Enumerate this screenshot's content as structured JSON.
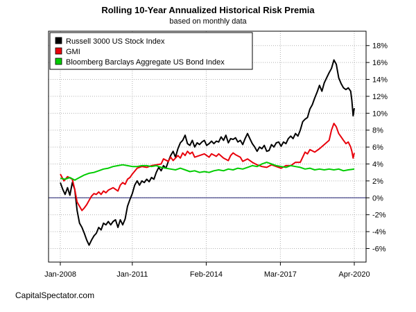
{
  "chart_data": {
    "type": "line",
    "title": "Rolling 10-Year Annualized Historical Risk Premia",
    "subtitle": "based on monthly data",
    "credit": "CapitalSpectator.com",
    "x_tick_labels": [
      "Jan-2008",
      "Jan-2011",
      "Feb-2014",
      "Mar-2017",
      "Apr-2020"
    ],
    "x_tick_values": [
      2008.0,
      2011.0,
      2014.08,
      2017.17,
      2020.25
    ],
    "xlim": [
      2008.0,
      2020.25
    ],
    "y_tick_values": [
      -6,
      -4,
      -2,
      0,
      2,
      4,
      6,
      8,
      10,
      12,
      14,
      16,
      18
    ],
    "y_tick_labels": [
      "-6%",
      "-4%",
      "-2%",
      "0%",
      "2%",
      "4%",
      "6%",
      "8%",
      "10%",
      "12%",
      "14%",
      "16%",
      "18%"
    ],
    "ylim": [
      -7.6,
      19.7
    ],
    "y_axis_side": "right",
    "grid": true,
    "reference_line": {
      "y": 0,
      "color": "#1a1a6e"
    },
    "legend_position": "top-left",
    "series": [
      {
        "name": "Russell 3000 US Stock Index",
        "color": "#000000",
        "points": [
          [
            2008.0,
            1.8
          ],
          [
            2008.1,
            1.0
          ],
          [
            2008.2,
            0.4
          ],
          [
            2008.3,
            1.2
          ],
          [
            2008.4,
            0.3
          ],
          [
            2008.5,
            1.8
          ],
          [
            2008.6,
            1.0
          ],
          [
            2008.7,
            -1.5
          ],
          [
            2008.8,
            -3.0
          ],
          [
            2008.9,
            -3.5
          ],
          [
            2009.0,
            -4.2
          ],
          [
            2009.1,
            -5.0
          ],
          [
            2009.2,
            -5.6
          ],
          [
            2009.3,
            -5.0
          ],
          [
            2009.4,
            -4.5
          ],
          [
            2009.5,
            -4.2
          ],
          [
            2009.6,
            -3.5
          ],
          [
            2009.7,
            -3.8
          ],
          [
            2009.8,
            -3.0
          ],
          [
            2009.9,
            -3.2
          ],
          [
            2010.0,
            -2.8
          ],
          [
            2010.1,
            -3.2
          ],
          [
            2010.2,
            -2.8
          ],
          [
            2010.3,
            -2.6
          ],
          [
            2010.4,
            -3.5
          ],
          [
            2010.5,
            -2.6
          ],
          [
            2010.6,
            -3.2
          ],
          [
            2010.7,
            -2.5
          ],
          [
            2010.8,
            -1.0
          ],
          [
            2010.9,
            -0.2
          ],
          [
            2011.0,
            0.5
          ],
          [
            2011.1,
            1.5
          ],
          [
            2011.2,
            2.0
          ],
          [
            2011.3,
            1.5
          ],
          [
            2011.4,
            2.0
          ],
          [
            2011.5,
            1.8
          ],
          [
            2011.6,
            2.2
          ],
          [
            2011.7,
            1.9
          ],
          [
            2011.8,
            2.4
          ],
          [
            2011.9,
            2.2
          ],
          [
            2012.0,
            3.0
          ],
          [
            2012.1,
            3.6
          ],
          [
            2012.2,
            3.2
          ],
          [
            2012.3,
            3.8
          ],
          [
            2012.4,
            3.5
          ],
          [
            2012.5,
            4.3
          ],
          [
            2012.6,
            5.0
          ],
          [
            2012.7,
            5.5
          ],
          [
            2012.8,
            4.8
          ],
          [
            2012.9,
            5.8
          ],
          [
            2013.0,
            6.5
          ],
          [
            2013.1,
            6.8
          ],
          [
            2013.2,
            7.4
          ],
          [
            2013.3,
            6.4
          ],
          [
            2013.4,
            6.2
          ],
          [
            2013.5,
            6.8
          ],
          [
            2013.6,
            6.0
          ],
          [
            2013.7,
            6.5
          ],
          [
            2013.8,
            6.3
          ],
          [
            2013.9,
            6.6
          ],
          [
            2014.0,
            6.8
          ],
          [
            2014.1,
            6.2
          ],
          [
            2014.2,
            6.4
          ],
          [
            2014.3,
            6.7
          ],
          [
            2014.4,
            6.4
          ],
          [
            2014.5,
            6.7
          ],
          [
            2014.6,
            6.6
          ],
          [
            2014.7,
            7.2
          ],
          [
            2014.8,
            6.8
          ],
          [
            2014.9,
            7.4
          ],
          [
            2015.0,
            6.5
          ],
          [
            2015.1,
            7.0
          ],
          [
            2015.2,
            6.9
          ],
          [
            2015.3,
            7.1
          ],
          [
            2015.4,
            6.6
          ],
          [
            2015.5,
            6.8
          ],
          [
            2015.6,
            6.3
          ],
          [
            2015.7,
            7.0
          ],
          [
            2015.8,
            7.6
          ],
          [
            2015.9,
            7.0
          ],
          [
            2016.0,
            6.4
          ],
          [
            2016.1,
            6.0
          ],
          [
            2016.2,
            5.5
          ],
          [
            2016.3,
            6.0
          ],
          [
            2016.4,
            5.8
          ],
          [
            2016.5,
            6.2
          ],
          [
            2016.6,
            5.5
          ],
          [
            2016.7,
            5.6
          ],
          [
            2016.8,
            6.3
          ],
          [
            2016.9,
            6.0
          ],
          [
            2017.0,
            6.5
          ],
          [
            2017.1,
            6.6
          ],
          [
            2017.2,
            6.1
          ],
          [
            2017.3,
            6.6
          ],
          [
            2017.4,
            6.4
          ],
          [
            2017.5,
            7.0
          ],
          [
            2017.6,
            7.3
          ],
          [
            2017.7,
            7.0
          ],
          [
            2017.8,
            7.6
          ],
          [
            2017.9,
            7.3
          ],
          [
            2018.0,
            8.0
          ],
          [
            2018.1,
            9.0
          ],
          [
            2018.2,
            9.3
          ],
          [
            2018.3,
            9.5
          ],
          [
            2018.4,
            10.5
          ],
          [
            2018.5,
            11.0
          ],
          [
            2018.6,
            11.8
          ],
          [
            2018.7,
            12.5
          ],
          [
            2018.8,
            13.3
          ],
          [
            2018.9,
            12.6
          ],
          [
            2019.0,
            13.6
          ],
          [
            2019.1,
            14.2
          ],
          [
            2019.2,
            14.8
          ],
          [
            2019.3,
            15.3
          ],
          [
            2019.4,
            16.3
          ],
          [
            2019.5,
            15.8
          ],
          [
            2019.6,
            14.2
          ],
          [
            2019.7,
            13.5
          ],
          [
            2019.8,
            13.0
          ],
          [
            2019.9,
            12.8
          ],
          [
            2020.0,
            13.0
          ],
          [
            2020.1,
            12.6
          ],
          [
            2020.15,
            11.5
          ],
          [
            2020.2,
            9.7
          ],
          [
            2020.25,
            10.6
          ]
        ]
      },
      {
        "name": "GMI",
        "color": "#e8000b",
        "points": [
          [
            2008.0,
            2.8
          ],
          [
            2008.15,
            2.0
          ],
          [
            2008.3,
            2.5
          ],
          [
            2008.5,
            2.2
          ],
          [
            2008.6,
            1.0
          ],
          [
            2008.7,
            -0.5
          ],
          [
            2008.8,
            -1.0
          ],
          [
            2008.9,
            -1.5
          ],
          [
            2009.0,
            -1.2
          ],
          [
            2009.1,
            -0.8
          ],
          [
            2009.2,
            -0.3
          ],
          [
            2009.3,
            0.2
          ],
          [
            2009.4,
            0.5
          ],
          [
            2009.5,
            0.4
          ],
          [
            2009.6,
            0.7
          ],
          [
            2009.7,
            0.4
          ],
          [
            2009.8,
            0.8
          ],
          [
            2009.9,
            0.6
          ],
          [
            2010.0,
            0.9
          ],
          [
            2010.2,
            1.2
          ],
          [
            2010.4,
            0.8
          ],
          [
            2010.5,
            1.5
          ],
          [
            2010.6,
            1.8
          ],
          [
            2010.7,
            1.6
          ],
          [
            2010.8,
            2.2
          ],
          [
            2010.9,
            2.4
          ],
          [
            2011.0,
            2.8
          ],
          [
            2011.2,
            3.5
          ],
          [
            2011.4,
            3.7
          ],
          [
            2011.6,
            3.6
          ],
          [
            2011.8,
            3.8
          ],
          [
            2012.0,
            3.9
          ],
          [
            2012.2,
            4.0
          ],
          [
            2012.3,
            4.6
          ],
          [
            2012.5,
            4.3
          ],
          [
            2012.6,
            4.8
          ],
          [
            2012.7,
            4.4
          ],
          [
            2012.8,
            4.7
          ],
          [
            2012.9,
            5.0
          ],
          [
            2013.0,
            4.7
          ],
          [
            2013.1,
            5.3
          ],
          [
            2013.2,
            5.0
          ],
          [
            2013.3,
            5.5
          ],
          [
            2013.4,
            5.2
          ],
          [
            2013.5,
            5.4
          ],
          [
            2013.6,
            4.8
          ],
          [
            2013.8,
            5.0
          ],
          [
            2014.0,
            5.2
          ],
          [
            2014.2,
            4.8
          ],
          [
            2014.3,
            5.2
          ],
          [
            2014.5,
            4.9
          ],
          [
            2014.6,
            5.2
          ],
          [
            2014.8,
            4.7
          ],
          [
            2015.0,
            4.4
          ],
          [
            2015.1,
            5.0
          ],
          [
            2015.2,
            5.3
          ],
          [
            2015.3,
            5.1
          ],
          [
            2015.5,
            4.8
          ],
          [
            2015.6,
            4.3
          ],
          [
            2015.8,
            4.6
          ],
          [
            2016.0,
            4.2
          ],
          [
            2016.2,
            3.9
          ],
          [
            2016.4,
            3.7
          ],
          [
            2016.6,
            3.6
          ],
          [
            2016.8,
            3.9
          ],
          [
            2017.0,
            3.7
          ],
          [
            2017.2,
            3.5
          ],
          [
            2017.4,
            3.8
          ],
          [
            2017.6,
            3.8
          ],
          [
            2017.8,
            4.2
          ],
          [
            2018.0,
            4.2
          ],
          [
            2018.1,
            4.8
          ],
          [
            2018.2,
            5.4
          ],
          [
            2018.3,
            5.2
          ],
          [
            2018.4,
            5.7
          ],
          [
            2018.6,
            5.4
          ],
          [
            2018.8,
            5.8
          ],
          [
            2019.0,
            6.3
          ],
          [
            2019.2,
            6.8
          ],
          [
            2019.3,
            8.0
          ],
          [
            2019.4,
            8.8
          ],
          [
            2019.5,
            8.4
          ],
          [
            2019.6,
            7.6
          ],
          [
            2019.7,
            7.2
          ],
          [
            2019.8,
            6.8
          ],
          [
            2019.9,
            6.4
          ],
          [
            2020.0,
            6.6
          ],
          [
            2020.1,
            6.0
          ],
          [
            2020.15,
            5.5
          ],
          [
            2020.2,
            4.7
          ],
          [
            2020.25,
            5.3
          ]
        ]
      },
      {
        "name": "Bloomberg Barclays Aggregate US Bond Index",
        "color": "#00cc00",
        "points": [
          [
            2008.0,
            2.3
          ],
          [
            2008.2,
            2.2
          ],
          [
            2008.4,
            2.4
          ],
          [
            2008.6,
            2.1
          ],
          [
            2008.8,
            2.4
          ],
          [
            2009.0,
            2.7
          ],
          [
            2009.2,
            2.9
          ],
          [
            2009.4,
            3.0
          ],
          [
            2009.6,
            3.2
          ],
          [
            2009.8,
            3.4
          ],
          [
            2010.0,
            3.5
          ],
          [
            2010.2,
            3.7
          ],
          [
            2010.4,
            3.8
          ],
          [
            2010.6,
            3.9
          ],
          [
            2010.8,
            3.8
          ],
          [
            2011.0,
            3.7
          ],
          [
            2011.2,
            3.7
          ],
          [
            2011.4,
            3.8
          ],
          [
            2011.6,
            3.8
          ],
          [
            2011.8,
            3.7
          ],
          [
            2012.0,
            3.8
          ],
          [
            2012.2,
            3.6
          ],
          [
            2012.4,
            3.5
          ],
          [
            2012.6,
            3.4
          ],
          [
            2012.8,
            3.3
          ],
          [
            2013.0,
            3.5
          ],
          [
            2013.2,
            3.3
          ],
          [
            2013.4,
            3.1
          ],
          [
            2013.6,
            3.2
          ],
          [
            2013.8,
            3.0
          ],
          [
            2014.0,
            3.1
          ],
          [
            2014.2,
            3.0
          ],
          [
            2014.4,
            3.2
          ],
          [
            2014.6,
            3.3
          ],
          [
            2014.8,
            3.2
          ],
          [
            2015.0,
            3.4
          ],
          [
            2015.2,
            3.3
          ],
          [
            2015.4,
            3.5
          ],
          [
            2015.6,
            3.4
          ],
          [
            2015.8,
            3.6
          ],
          [
            2016.0,
            3.8
          ],
          [
            2016.2,
            3.7
          ],
          [
            2016.4,
            4.0
          ],
          [
            2016.6,
            4.2
          ],
          [
            2016.8,
            4.0
          ],
          [
            2017.0,
            3.8
          ],
          [
            2017.2,
            3.7
          ],
          [
            2017.4,
            3.6
          ],
          [
            2017.6,
            3.8
          ],
          [
            2017.8,
            3.7
          ],
          [
            2018.0,
            3.6
          ],
          [
            2018.2,
            3.4
          ],
          [
            2018.4,
            3.5
          ],
          [
            2018.6,
            3.3
          ],
          [
            2018.8,
            3.4
          ],
          [
            2019.0,
            3.3
          ],
          [
            2019.2,
            3.4
          ],
          [
            2019.4,
            3.3
          ],
          [
            2019.6,
            3.4
          ],
          [
            2019.8,
            3.2
          ],
          [
            2020.0,
            3.3
          ],
          [
            2020.25,
            3.4
          ]
        ]
      }
    ]
  }
}
